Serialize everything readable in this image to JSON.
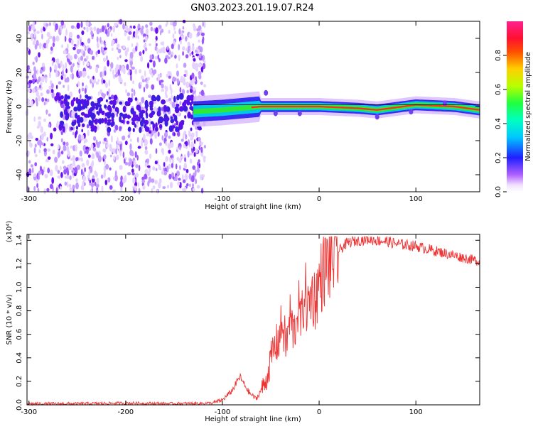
{
  "title": "GN03.2023.201.19.07.R24",
  "chart_data": [
    {
      "type": "heatmap",
      "xlabel": "Height of straight line (km)",
      "ylabel": "Frequency (Hz)",
      "xlim": [
        -302,
        166
      ],
      "ylim": [
        -50,
        50
      ],
      "xticks": [
        -300,
        -200,
        -100,
        0,
        100
      ],
      "yticks": [
        -40,
        -20,
        0,
        20,
        40
      ],
      "colorbar": {
        "label": "Normalized spectral amplitude",
        "range": [
          0,
          1
        ],
        "ticks": [
          "0.0",
          "0.2",
          "0.4",
          "0.6",
          "0.8"
        ],
        "colormap": "rainbow"
      },
      "ridge": {
        "description_points_x": [
          -130,
          -100,
          -80,
          -60,
          -40,
          -20,
          0,
          40,
          60,
          100,
          140,
          166
        ],
        "description_points_y": [
          -3,
          -2,
          -1,
          0,
          0,
          0,
          0,
          -1,
          -2,
          1,
          0,
          -2
        ]
      }
    },
    {
      "type": "line",
      "xlabel": "Height of straight line (km)",
      "ylabel": "SNR (10 * v/v)",
      "scale_label": "(x10⁴)",
      "xlim": [
        -302,
        166
      ],
      "ylim": [
        0,
        1.45
      ],
      "xticks": [
        -300,
        -200,
        -100,
        0,
        100
      ],
      "yticks": [
        "0.0",
        "0.2",
        "0.4",
        "0.6",
        "0.8",
        "1.0",
        "1.2",
        "1.4"
      ],
      "series": [
        {
          "color": "#ee3333",
          "x": [
            -302,
            -250,
            -200,
            -150,
            -110,
            -100,
            -90,
            -82,
            -78,
            -72,
            -65,
            -55,
            -48,
            -42,
            -38,
            -34,
            -30,
            -26,
            -22,
            -18,
            -15,
            -12,
            -8,
            -4,
            0,
            5,
            10,
            15,
            20,
            25,
            30,
            40,
            50,
            60,
            70,
            80,
            90,
            100,
            110,
            120,
            130,
            140,
            150,
            166
          ],
          "y": [
            0.01,
            0.01,
            0.015,
            0.01,
            0.015,
            0.04,
            0.12,
            0.24,
            0.18,
            0.1,
            0.05,
            0.2,
            0.45,
            0.55,
            0.7,
            0.5,
            0.75,
            0.6,
            0.85,
            0.7,
            1.0,
            0.8,
            0.95,
            0.9,
            1.05,
            1.15,
            1.2,
            1.25,
            1.3,
            1.35,
            1.38,
            1.4,
            1.41,
            1.4,
            1.39,
            1.37,
            1.36,
            1.35,
            1.33,
            1.31,
            1.29,
            1.27,
            1.25,
            1.22
          ]
        }
      ]
    }
  ]
}
